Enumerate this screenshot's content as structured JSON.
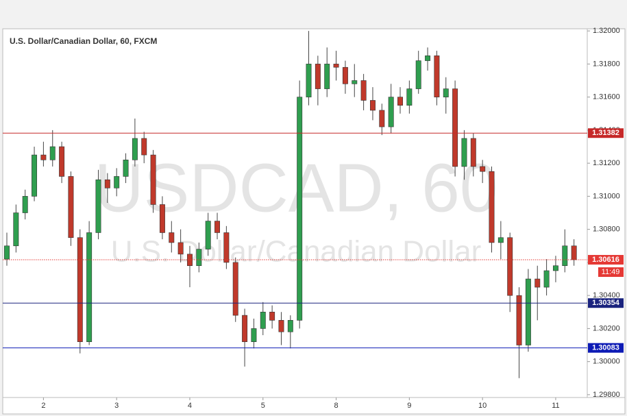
{
  "chart_data": {
    "type": "candlestick",
    "title": "U.S. Dollar/Canadian Dollar, 60, FXCM",
    "watermark": {
      "symbol": "USDCAD, 60",
      "description": "U.S. Dollar/Canadian Dollar"
    },
    "up_color": "#2f9e4f",
    "down_color": "#c0392b",
    "ohlc": [
      [
        1.3062,
        1.3078,
        1.3058,
        1.307
      ],
      [
        1.307,
        1.3095,
        1.3066,
        1.309
      ],
      [
        1.309,
        1.3104,
        1.3086,
        1.31
      ],
      [
        1.31,
        1.313,
        1.3097,
        1.3125
      ],
      [
        1.3125,
        1.3133,
        1.3118,
        1.3122
      ],
      [
        1.3122,
        1.314,
        1.3118,
        1.313
      ],
      [
        1.313,
        1.3133,
        1.3108,
        1.3112
      ],
      [
        1.3112,
        1.3115,
        1.307,
        1.3075
      ],
      [
        1.3075,
        1.308,
        1.3005,
        1.3012
      ],
      [
        1.3012,
        1.3085,
        1.301,
        1.3078
      ],
      [
        1.3078,
        1.3116,
        1.3074,
        1.311
      ],
      [
        1.311,
        1.3114,
        1.3096,
        1.3105
      ],
      [
        1.3105,
        1.3117,
        1.31,
        1.3112
      ],
      [
        1.3112,
        1.3126,
        1.3108,
        1.3122
      ],
      [
        1.3122,
        1.3147,
        1.3118,
        1.3135
      ],
      [
        1.3135,
        1.3139,
        1.312,
        1.3125
      ],
      [
        1.3125,
        1.3128,
        1.309,
        1.3095
      ],
      [
        1.3095,
        1.31,
        1.3074,
        1.3078
      ],
      [
        1.3078,
        1.3085,
        1.3066,
        1.3072
      ],
      [
        1.3072,
        1.308,
        1.306,
        1.3065
      ],
      [
        1.3065,
        1.307,
        1.3045,
        1.3058
      ],
      [
        1.3058,
        1.3072,
        1.3054,
        1.3068
      ],
      [
        1.3068,
        1.309,
        1.3064,
        1.3085
      ],
      [
        1.3085,
        1.309,
        1.3074,
        1.3078
      ],
      [
        1.3078,
        1.3082,
        1.3056,
        1.306
      ],
      [
        1.306,
        1.3063,
        1.3024,
        1.3028
      ],
      [
        1.3028,
        1.3032,
        1.2997,
        1.3012
      ],
      [
        1.3012,
        1.3026,
        1.3008,
        1.302
      ],
      [
        1.302,
        1.3036,
        1.3016,
        1.303
      ],
      [
        1.303,
        1.3034,
        1.302,
        1.3025
      ],
      [
        1.3025,
        1.303,
        1.301,
        1.3018
      ],
      [
        1.3018,
        1.3028,
        1.3008,
        1.3025
      ],
      [
        1.3025,
        1.317,
        1.302,
        1.316
      ],
      [
        1.316,
        1.32,
        1.3155,
        1.318
      ],
      [
        1.318,
        1.3185,
        1.3155,
        1.3165
      ],
      [
        1.3165,
        1.319,
        1.316,
        1.318
      ],
      [
        1.318,
        1.3188,
        1.317,
        1.3178
      ],
      [
        1.3178,
        1.3182,
        1.3162,
        1.3168
      ],
      [
        1.3168,
        1.318,
        1.316,
        1.317
      ],
      [
        1.317,
        1.3174,
        1.3152,
        1.3158
      ],
      [
        1.3158,
        1.3166,
        1.3146,
        1.3152
      ],
      [
        1.3152,
        1.3156,
        1.3137,
        1.3142
      ],
      [
        1.3142,
        1.3168,
        1.3138,
        1.316
      ],
      [
        1.316,
        1.3166,
        1.315,
        1.3155
      ],
      [
        1.3155,
        1.317,
        1.315,
        1.3165
      ],
      [
        1.3165,
        1.3188,
        1.3162,
        1.3182
      ],
      [
        1.3182,
        1.319,
        1.3176,
        1.3185
      ],
      [
        1.3185,
        1.3188,
        1.3155,
        1.316
      ],
      [
        1.316,
        1.3172,
        1.315,
        1.3165
      ],
      [
        1.3165,
        1.317,
        1.3112,
        1.3118
      ],
      [
        1.3118,
        1.314,
        1.311,
        1.3135
      ],
      [
        1.3135,
        1.3138,
        1.3112,
        1.3118
      ],
      [
        1.3118,
        1.3122,
        1.3108,
        1.3115
      ],
      [
        1.3115,
        1.3118,
        1.3066,
        1.3072
      ],
      [
        1.3072,
        1.3085,
        1.3062,
        1.3075
      ],
      [
        1.3075,
        1.3078,
        1.303,
        1.304
      ],
      [
        1.304,
        1.3045,
        1.299,
        1.301
      ],
      [
        1.301,
        1.3056,
        1.3006,
        1.305
      ],
      [
        1.305,
        1.3058,
        1.3025,
        1.3045
      ],
      [
        1.3045,
        1.3062,
        1.304,
        1.3055
      ],
      [
        1.3055,
        1.3064,
        1.3048,
        1.3058
      ],
      [
        1.3058,
        1.308,
        1.3054,
        1.307
      ],
      [
        1.307,
        1.3074,
        1.3058,
        1.30616
      ]
    ],
    "xlim": [
      -0.15,
      63.45
    ],
    "xticks": [
      {
        "value": 4,
        "label": "2"
      },
      {
        "value": 12,
        "label": "3"
      },
      {
        "value": 20,
        "label": "4"
      },
      {
        "value": 28,
        "label": "5"
      },
      {
        "value": 36,
        "label": "8"
      },
      {
        "value": 44,
        "label": "9"
      },
      {
        "value": 52,
        "label": "10"
      },
      {
        "value": 60,
        "label": "11"
      }
    ],
    "ylim": [
      1.29783,
      1.32013
    ],
    "yticks": [
      {
        "value": 1.298,
        "label": "1.29800"
      },
      {
        "value": 1.3,
        "label": "1.30000"
      },
      {
        "value": 1.302,
        "label": "1.30200"
      },
      {
        "value": 1.304,
        "label": "1.30400"
      },
      {
        "value": 1.306,
        "label": "1.30600"
      },
      {
        "value": 1.308,
        "label": "1.30800"
      },
      {
        "value": 1.31,
        "label": "1.31000"
      },
      {
        "value": 1.312,
        "label": "1.31200"
      },
      {
        "value": 1.314,
        "label": "1.31400"
      },
      {
        "value": 1.316,
        "label": "1.31600"
      },
      {
        "value": 1.318,
        "label": "1.31800"
      },
      {
        "value": 1.32,
        "label": "1.32000"
      }
    ],
    "levels": [
      {
        "value": 1.31382,
        "color": "#c62828"
      },
      {
        "value": 1.30354,
        "color": "#1a237e"
      },
      {
        "value": 1.30083,
        "color": "#0d1bb5"
      }
    ],
    "last_price": {
      "value": 1.30616,
      "color": "#e53935",
      "countdown": "11:49"
    }
  }
}
